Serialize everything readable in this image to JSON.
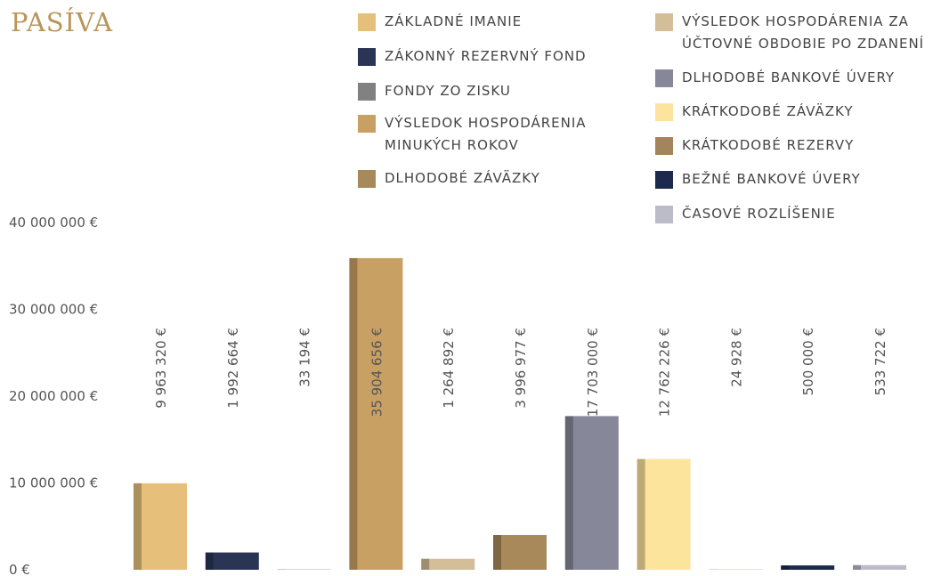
{
  "chart_data": {
    "type": "bar",
    "title": "PASÍVA",
    "categories": [
      "ZÁKLADNÉ IMANIE",
      "ZÁKONNÝ REZERVNÝ FOND",
      "FONDY ZO ZISKU",
      "VÝSLEDOK HOSPODÁRENIA MINUKÝCH ROKOV",
      "VÝSLEDOK HOSPODÁRENIA ZA ÚČTOVNÉ OBDOBIE PO ZDANENÍ",
      "DLHODOBÉ ZÁVÄZKY",
      "DLHODOBÉ BANKOVÉ ÚVERY",
      "KRÁTKODOBÉ ZÁVÄZKY",
      "KRÁTKODOBÉ REZERVY",
      "BEŽNÉ BANKOVÉ ÚVERY",
      "ČASOVÉ ROZLÍŠENIE"
    ],
    "values": [
      9963320,
      1992664,
      33194,
      35904656,
      1264892,
      3996977,
      17703000,
      12762226,
      24928,
      500000,
      533722
    ],
    "value_labels": [
      "9 963 320 €",
      "1 992 664 €",
      "33 194 €",
      "35 904 656 €",
      "1 264 892 €",
      "3 996 977 €",
      "17 703 000 €",
      "12 762 226 €",
      "24 928 €",
      "500 000 €",
      "533 722 €"
    ],
    "colors": [
      "#e6c07a",
      "#2a3556",
      "#818181",
      "#c9a064",
      "#d4bd99",
      "#a8895a",
      "#868899",
      "#fde49c",
      "#a4845a",
      "#1c2a4e",
      "#bcbbc9"
    ],
    "ylim": [
      0,
      40000000
    ],
    "yticks": [
      {
        "value": 0,
        "label": "0 €"
      },
      {
        "value": 10000000,
        "label": "10 000 000  €"
      },
      {
        "value": 20000000,
        "label": "20 000 000  €"
      },
      {
        "value": 30000000,
        "label": "30 000 000  €"
      },
      {
        "value": 40000000,
        "label": "40 000 000  €"
      }
    ],
    "grid": false
  }
}
